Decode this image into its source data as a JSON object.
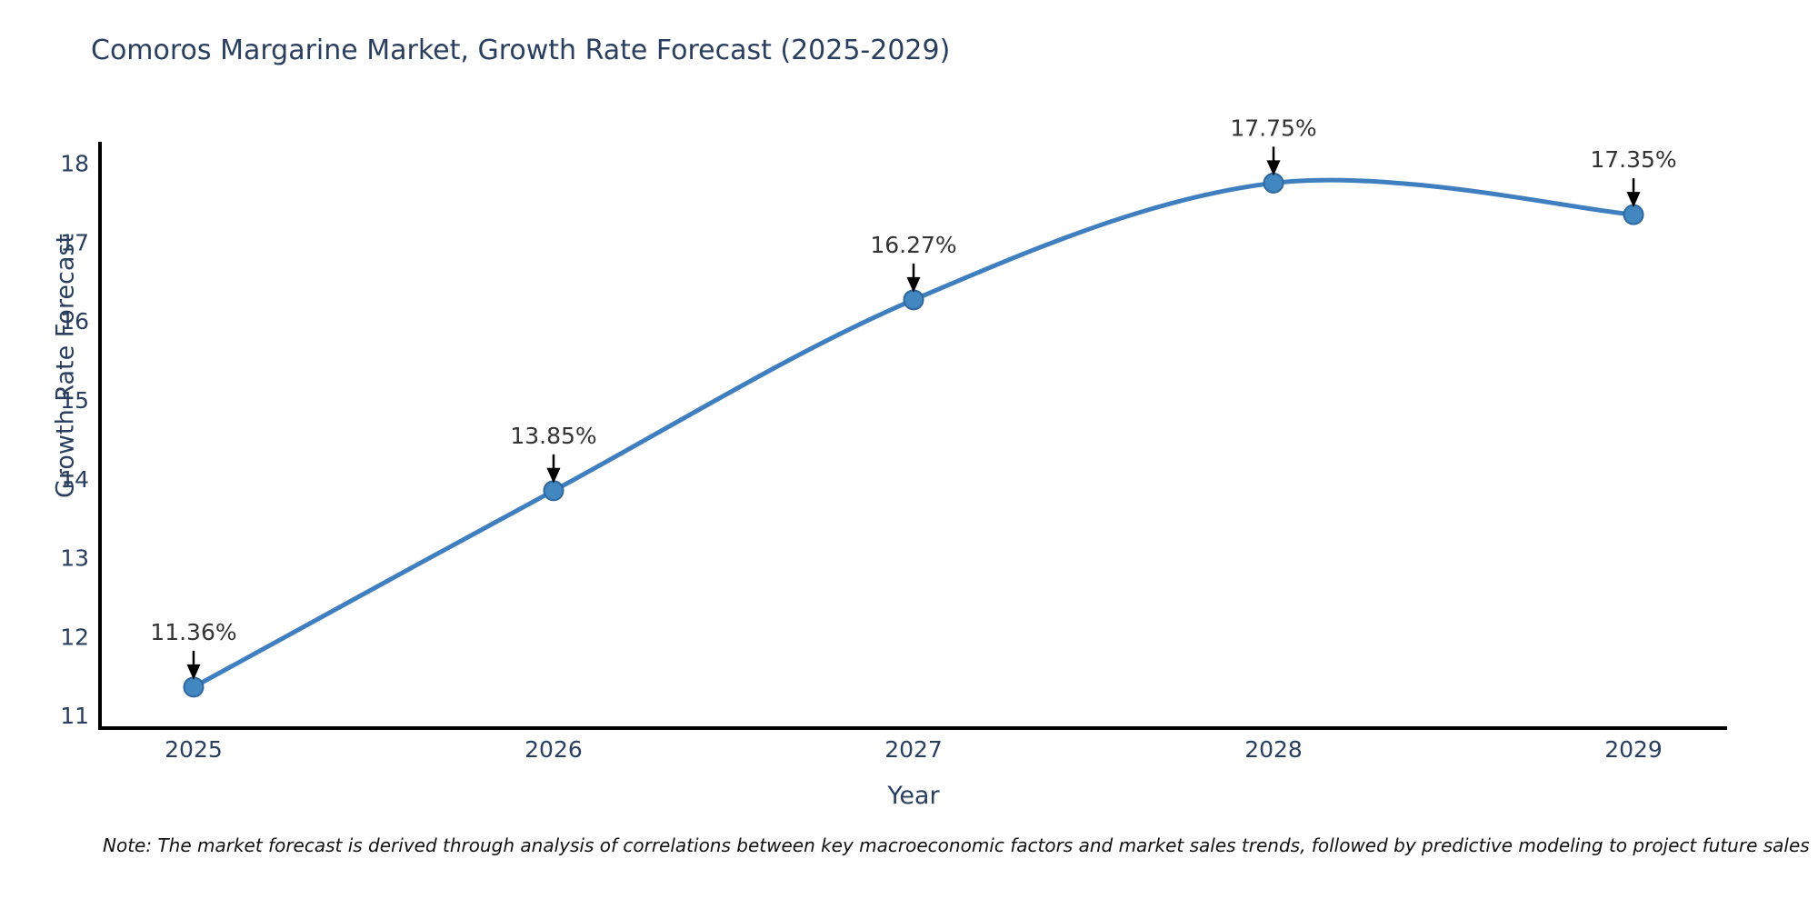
{
  "page": {
    "background": "#ffffff"
  },
  "chart_data": {
    "type": "line",
    "title": "Comoros Margarine Market, Growth Rate Forecast (2025-2029)",
    "xlabel": "Year",
    "ylabel": "Growth Rate Forecast",
    "x": [
      2025,
      2026,
      2027,
      2028,
      2029
    ],
    "series": [
      {
        "name": "Growth Rate Forecast",
        "values": [
          11.36,
          13.85,
          16.27,
          17.75,
          17.35
        ]
      }
    ],
    "point_labels": [
      "11.36%",
      "13.85%",
      "16.27%",
      "17.75%",
      "17.35%"
    ],
    "x_tick_labels": [
      "2025",
      "2026",
      "2027",
      "2028",
      "2029"
    ],
    "y_tick_values": [
      11,
      12,
      13,
      14,
      15,
      16,
      17,
      18
    ],
    "xlim": [
      2024.74,
      2029.26
    ],
    "ylim": [
      10.84,
      18.25
    ],
    "grid": false,
    "legend_position": "none",
    "line_shape": "spline",
    "annotations_have_arrows": true,
    "colors": {
      "line": "#3f7fbf",
      "marker_fill": "#4287c0",
      "marker_edge": "#2e689e",
      "annotation_text": "#333333",
      "annotation_arrow": "#000000",
      "axis_line": "#000000",
      "tick_text": "#2a3f5f",
      "title_text": "#2a3f5f"
    }
  },
  "note": {
    "text": "Note: The market forecast is derived through analysis of correlations between key macroeconomic factors and market sales trends, followed by predictive modeling to project future sales"
  }
}
